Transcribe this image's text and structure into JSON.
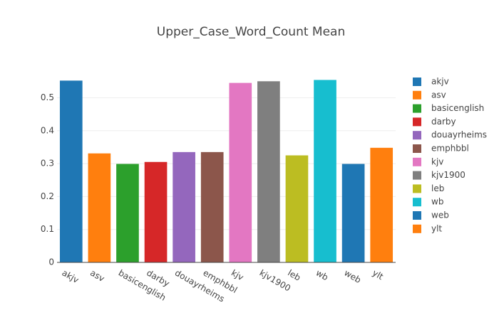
{
  "chart_data": {
    "type": "bar",
    "title": "Upper_Case_Word_Count Mean",
    "categories": [
      "akjv",
      "asv",
      "basicenglish",
      "darby",
      "douayrheims",
      "emphbbl",
      "kjv",
      "kjv1900",
      "leb",
      "wb",
      "web",
      "ylt"
    ],
    "values": [
      0.552,
      0.331,
      0.299,
      0.305,
      0.335,
      0.335,
      0.545,
      0.55,
      0.325,
      0.554,
      0.299,
      0.348
    ],
    "colors": [
      "#1f77b4",
      "#ff7f0e",
      "#2ca02c",
      "#d62728",
      "#9467bd",
      "#8c564b",
      "#e377c2",
      "#7f7f7f",
      "#bcbd22",
      "#17becf",
      "#1f77b4",
      "#ff7f0e"
    ],
    "ylim": [
      0,
      0.583
    ],
    "yticks": [
      0,
      0.1,
      0.2,
      0.3,
      0.4,
      0.5
    ],
    "grid": true,
    "legend": "right"
  }
}
